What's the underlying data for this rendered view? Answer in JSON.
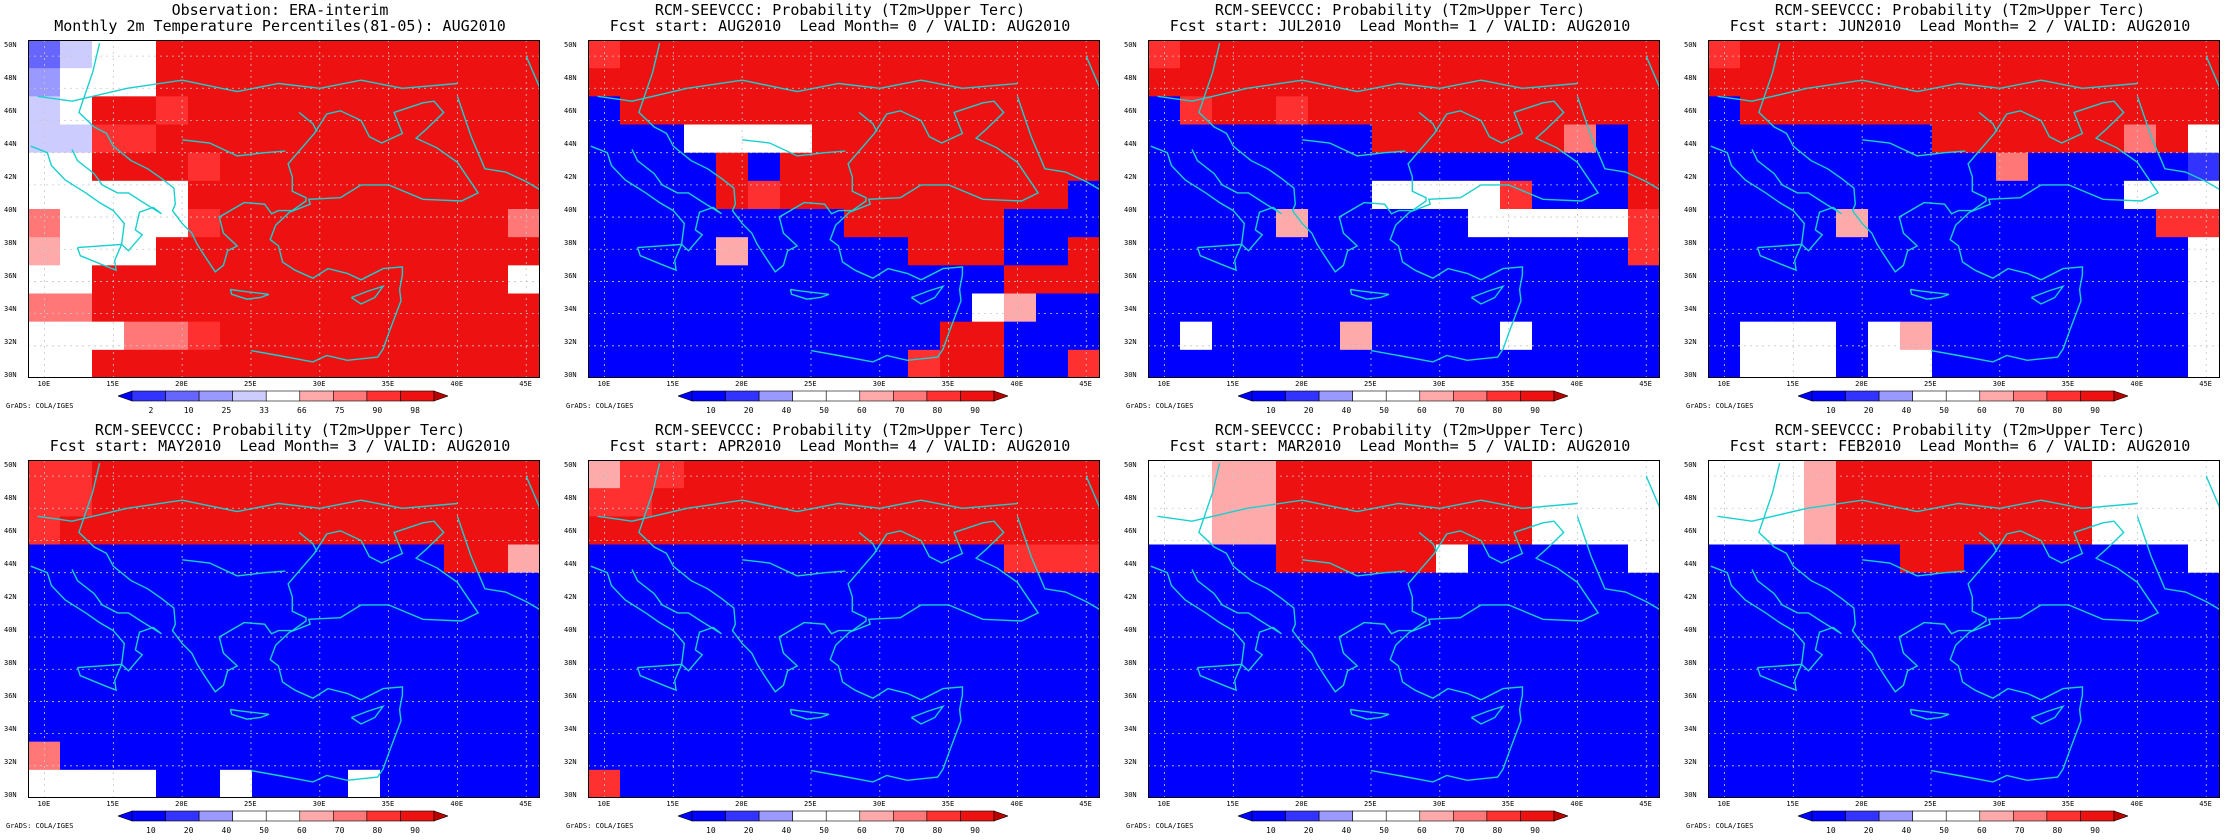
{
  "colors": {
    "d1": "#0000ff",
    "d2": "#3333ff",
    "d3": "#6666ff",
    "d4": "#9999ff",
    "d5": "#ccccff",
    "n": "#ffffff",
    "u1": "#ffaaaa",
    "u2": "#ff7777",
    "u3": "#ff3030",
    "u4": "#ee1111",
    "u5": "#bb0000",
    "u6": "#9a0000",
    "coast": "#19d0d0",
    "grid": "#c8c8c8"
  },
  "common": {
    "lon_labels": [
      "10E",
      "15E",
      "20E",
      "25E",
      "30E",
      "35E",
      "40E",
      "45E"
    ],
    "lat_labels": [
      "50N",
      "48N",
      "46N",
      "44N",
      "42N",
      "40N",
      "38N",
      "36N",
      "34N",
      "32N",
      "30N"
    ],
    "credit": "GrADS: COLA/IGES"
  },
  "palette_obs": [
    "d1",
    "d2",
    "d3",
    "d4",
    "d5",
    "n",
    "u1",
    "u2",
    "u3",
    "u4",
    "u5"
  ],
  "palette_prob": [
    "d1",
    "d1",
    "d2",
    "d4",
    "n",
    "n",
    "u1",
    "u2",
    "u3",
    "u4",
    "u5"
  ],
  "colorbar_obs_labels": [
    "2",
    "10",
    "25",
    "33",
    "66",
    "75",
    "90",
    "98"
  ],
  "colorbar_prob_labels": [
    "10",
    "20",
    "40",
    "50",
    "60",
    "70",
    "80",
    "90"
  ],
  "panels": [
    {
      "title1": "Observation: ERA-interim",
      "title2": "Monthly 2m Temperature Percentiles(81-05): AUG2010",
      "scale": "obs",
      "grid": [
        "2455999999999999",
        "3555999999999999",
        "4599899999999999",
        "4488999999999999",
        "5599989999999999",
        "5555599999999999",
        "7555589999999997",
        "6555999999999999",
        "5599999999999995",
        "7799999999999999",
        "5557789999999999",
        "5599999999999999"
      ]
    },
    {
      "title1": "RCM-SEEVCCC: Probability (T2m>Upper Terc)",
      "title2": "Fcst start: AUG2010  Lead Month= 0 / VALID: AUG2010",
      "scale": "prob",
      "grid": [
        "8999999999999999",
        "9999999999999999",
        "0999999999999999",
        "0004555999999999",
        "0000909999999999",
        "0000989999999990",
        "0000000099999000",
        "0000600000999009",
        "0000000000000999",
        "0000000000005600",
        "0000000000099000",
        "0000000000899008"
      ]
    },
    {
      "title1": "RCM-SEEVCCC: Probability (T2m>Upper Terc)",
      "title2": "Fcst start: JUL2010  Lead Month= 1 / VALID: AUG2010",
      "scale": "prob",
      "grid": [
        "8999999999999999",
        "9999999999999999",
        "0899899999999999",
        "0000000999999709",
        "0000000000000009",
        "0000000555580009",
        "0000600000555558",
        "0000000000000008",
        "0000000000000000",
        "0000000000000000",
        "0500006000050000",
        "0000000000000000"
      ]
    },
    {
      "title1": "RCM-SEEVCCC: Probability (T2m>Upper Terc)",
      "title2": "Fcst start: JUN2010  Lead Month= 2 / VALID: AUG2010",
      "scale": "prob",
      "grid": [
        "8999999999999999",
        "9999999999999999",
        "0999999999999999",
        "0000000999999795",
        "0000000007000002",
        "0000000000000455",
        "0000600000000088",
        "0000000000000005",
        "0000000000000005",
        "0000000000000005",
        "0555056000000005",
        "0555055000000005"
      ]
    },
    {
      "title1": "RCM-SEEVCCC: Probability (T2m>Upper Terc)",
      "title2": "Fcst start: MAY2010  Lead Month= 3 / VALID: AUG2010",
      "scale": "prob",
      "grid": [
        "8899999999999999",
        "8899999999999999",
        "8999999999999999",
        "0000000000000996",
        "0000000000000000",
        "0000000000000000",
        "0000000000000000",
        "0000000000000000",
        "0000000000000000",
        "0000000000000000",
        "7000000000000000",
        "5555005000500000"
      ]
    },
    {
      "title1": "RCM-SEEVCCC: Probability (T2m>Upper Terc)",
      "title2": "Fcst start: APR2010  Lead Month= 4 / VALID: AUG2010",
      "scale": "prob",
      "grid": [
        "6889999999999999",
        "8899999999999999",
        "9999999999999999",
        "0000000000000888",
        "0000000000000000",
        "0000000000000000",
        "0000000000000000",
        "0000000000000000",
        "0000000000000000",
        "0000000000000000",
        "0000000000000000",
        "8000000000000000"
      ]
    },
    {
      "title1": "RCM-SEEVCCC: Probability (T2m>Upper Terc)",
      "title2": "Fcst start: MAR2010  Lead Month= 5 / VALID: AUG2010",
      "scale": "prob",
      "grid": [
        "5566999999995555",
        "5566999999995555",
        "5566999999995555",
        "0000999995000005",
        "0000000000000000",
        "0000000000000000",
        "0000000000000000",
        "0000000000000000",
        "0000000000000000",
        "0000000000000000",
        "0000000000000000",
        "0000000000000000"
      ]
    },
    {
      "title1": "RCM-SEEVCCC: Probability (T2m>Upper Terc)",
      "title2": "Fcst start: FEB2010  Lead Month= 6 / VALID: AUG2010",
      "scale": "prob",
      "grid": [
        "5556999999995555",
        "5556999999995555",
        "5556999999995555",
        "0000009900000005",
        "0000000000000000",
        "0000000000000000",
        "0000000000000000",
        "0000000000000000",
        "0000000000000000",
        "0000000000000000",
        "0000000000000000",
        "0000000000000000"
      ]
    }
  ]
}
